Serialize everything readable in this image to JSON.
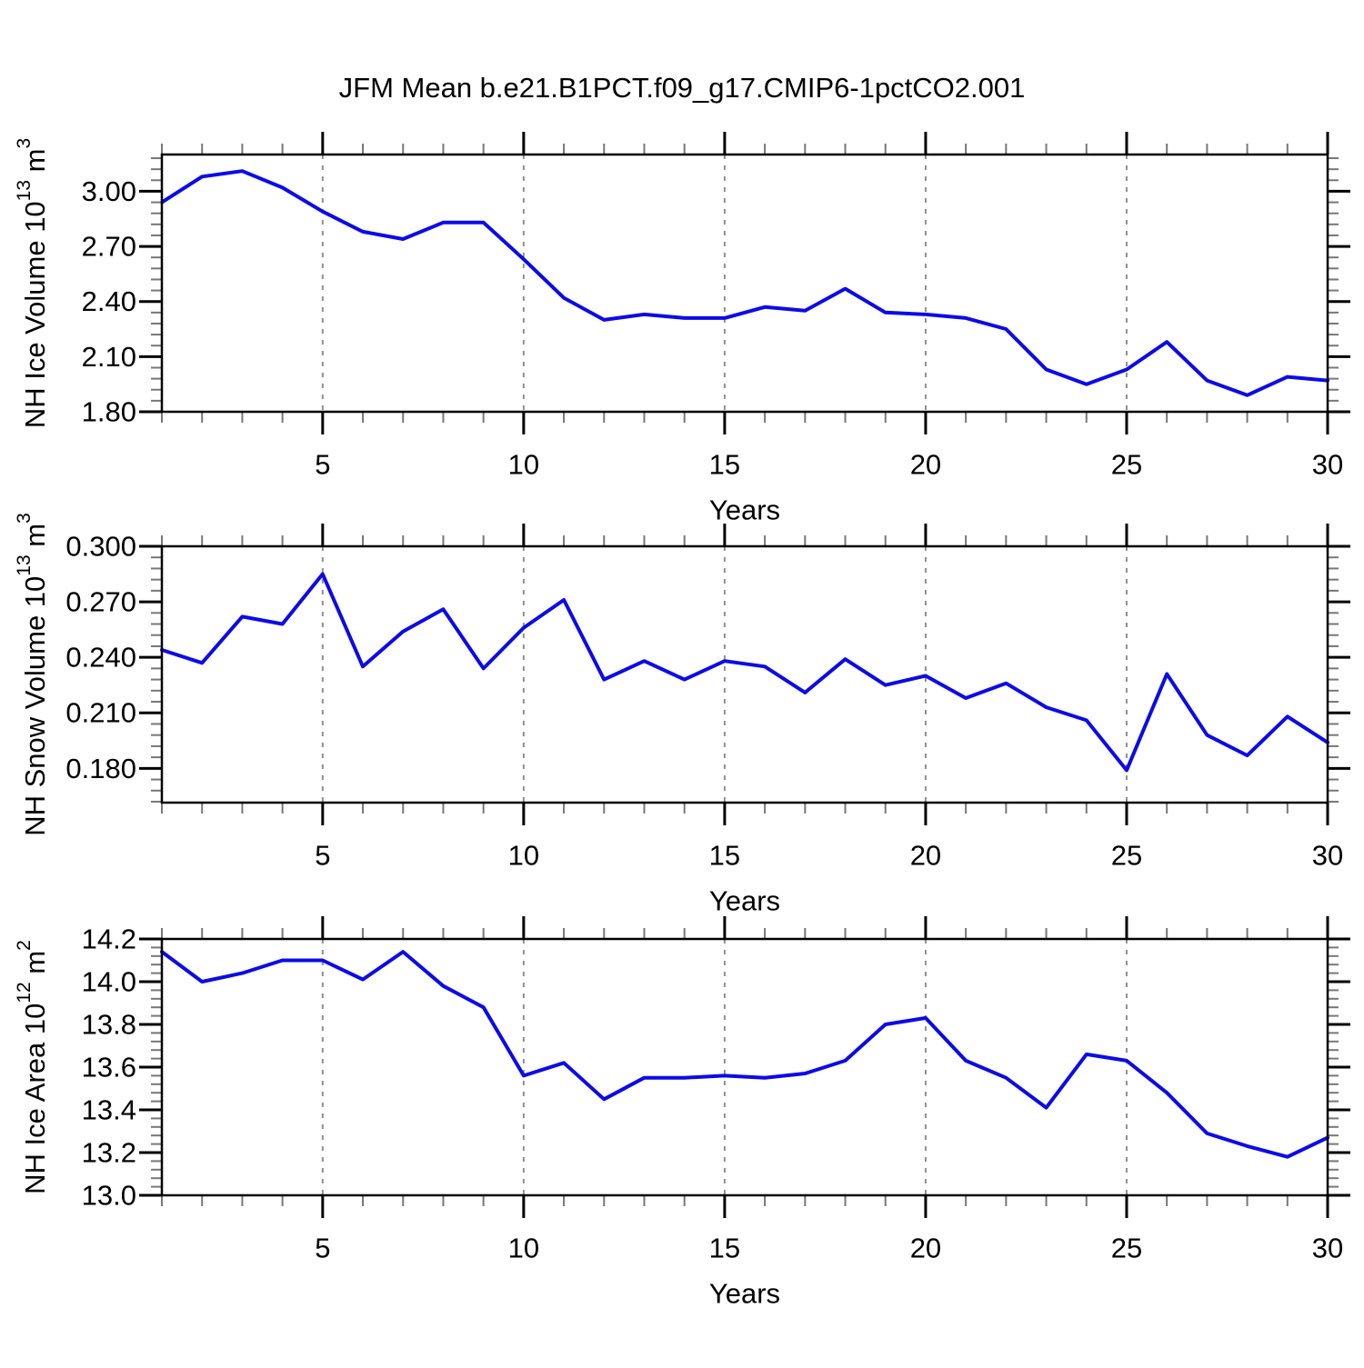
{
  "figure": {
    "title": "JFM Mean b.e21.B1PCT.f09_g17.CMIP6-1pctCO2.001"
  },
  "colors": {
    "line": "#0b0be8",
    "frame": "#000000",
    "grid": "#909090",
    "major_tick": "#000000",
    "minor_tick": "#777777",
    "background": "#ffffff"
  },
  "chart_data": [
    {
      "type": "line",
      "panel": "NH Ice Volume",
      "ylabel": "NH Ice Volume 10^13 m^3",
      "ylabel_parts": [
        {
          "text": "NH Ice Volume 10",
          "sup": false
        },
        {
          "text": "13",
          "sup": true
        },
        {
          "text": " m",
          "sup": false
        },
        {
          "text": "3",
          "sup": true
        }
      ],
      "xlabel": "Years",
      "x": [
        1,
        2,
        3,
        4,
        5,
        6,
        7,
        8,
        9,
        10,
        11,
        12,
        13,
        14,
        15,
        16,
        17,
        18,
        19,
        20,
        21,
        22,
        23,
        24,
        25,
        26,
        27,
        28,
        29,
        30
      ],
      "values": [
        2.94,
        3.08,
        3.11,
        3.02,
        2.89,
        2.78,
        2.74,
        2.83,
        2.83,
        2.63,
        2.42,
        2.3,
        2.33,
        2.31,
        2.31,
        2.37,
        2.35,
        2.47,
        2.34,
        2.33,
        2.31,
        2.25,
        2.03,
        1.95,
        2.03,
        2.18,
        1.97,
        1.89,
        1.99,
        1.97
      ],
      "xlim": [
        1,
        30
      ],
      "ylim": [
        1.8,
        3.2
      ],
      "yticks": [
        3.0,
        2.7,
        2.4,
        2.1,
        1.8
      ],
      "ytick_labels": [
        "3.00",
        "2.70",
        "2.40",
        "2.10",
        "1.80"
      ],
      "y_minor_step": 0.06,
      "xticks": [
        5,
        10,
        15,
        20,
        25,
        30
      ],
      "xtick_labels": [
        "5",
        "10",
        "15",
        "20",
        "25",
        "30"
      ],
      "x_minor_step": 1,
      "x_gridlines": [
        5,
        10,
        15,
        20,
        25
      ],
      "grid_style": "vertical-dashed"
    },
    {
      "type": "line",
      "panel": "NH Snow Volume",
      "ylabel": "NH Snow Volume 10^13 m^3",
      "ylabel_parts": [
        {
          "text": "NH Snow Volume 10",
          "sup": false
        },
        {
          "text": "13",
          "sup": true
        },
        {
          "text": " m",
          "sup": false
        },
        {
          "text": "3",
          "sup": true
        }
      ],
      "xlabel": "Years",
      "x": [
        1,
        2,
        3,
        4,
        5,
        6,
        7,
        8,
        9,
        10,
        11,
        12,
        13,
        14,
        15,
        16,
        17,
        18,
        19,
        20,
        21,
        22,
        23,
        24,
        25,
        26,
        27,
        28,
        29,
        30
      ],
      "values": [
        0.244,
        0.237,
        0.262,
        0.258,
        0.285,
        0.235,
        0.254,
        0.266,
        0.234,
        0.256,
        0.271,
        0.228,
        0.238,
        0.228,
        0.238,
        0.235,
        0.221,
        0.239,
        0.225,
        0.23,
        0.218,
        0.226,
        0.213,
        0.206,
        0.179,
        0.231,
        0.198,
        0.187,
        0.208,
        0.194
      ],
      "xlim": [
        1,
        30
      ],
      "ylim": [
        0.1615,
        0.3
      ],
      "yticks": [
        0.3,
        0.27,
        0.24,
        0.21,
        0.18
      ],
      "ytick_labels": [
        "0.300",
        "0.270",
        "0.240",
        "0.210",
        "0.180"
      ],
      "y_minor_step": 0.006,
      "xticks": [
        5,
        10,
        15,
        20,
        25,
        30
      ],
      "xtick_labels": [
        "5",
        "10",
        "15",
        "20",
        "25",
        "30"
      ],
      "x_minor_step": 1,
      "x_gridlines": [
        5,
        10,
        15,
        20,
        25
      ],
      "grid_style": "vertical-dashed"
    },
    {
      "type": "line",
      "panel": "NH Ice Area",
      "ylabel": "NH Ice Area 10^12 m^2",
      "ylabel_parts": [
        {
          "text": "NH Ice Area 10",
          "sup": false
        },
        {
          "text": "12",
          "sup": true
        },
        {
          "text": " m",
          "sup": false
        },
        {
          "text": "2",
          "sup": true
        }
      ],
      "xlabel": "Years",
      "x": [
        1,
        2,
        3,
        4,
        5,
        6,
        7,
        8,
        9,
        10,
        11,
        12,
        13,
        14,
        15,
        16,
        17,
        18,
        19,
        20,
        21,
        22,
        23,
        24,
        25,
        26,
        27,
        28,
        29,
        30
      ],
      "values": [
        14.14,
        14.0,
        14.04,
        14.1,
        14.1,
        14.01,
        14.14,
        13.98,
        13.88,
        13.56,
        13.62,
        13.45,
        13.55,
        13.55,
        13.56,
        13.55,
        13.57,
        13.63,
        13.8,
        13.83,
        13.63,
        13.55,
        13.41,
        13.66,
        13.63,
        13.48,
        13.29,
        13.23,
        13.18,
        13.27
      ],
      "xlim": [
        1,
        30
      ],
      "ylim": [
        13.0,
        14.2
      ],
      "yticks": [
        14.2,
        14.0,
        13.8,
        13.6,
        13.4,
        13.2,
        13.0
      ],
      "ytick_labels": [
        "14.2",
        "14.0",
        "13.8",
        "13.6",
        "13.4",
        "13.2",
        "13.0"
      ],
      "y_minor_step": 0.04,
      "xticks": [
        5,
        10,
        15,
        20,
        25,
        30
      ],
      "xtick_labels": [
        "5",
        "10",
        "15",
        "20",
        "25",
        "30"
      ],
      "x_minor_step": 1,
      "x_gridlines": [
        5,
        10,
        15,
        20,
        25
      ],
      "grid_style": "vertical-dashed"
    }
  ]
}
